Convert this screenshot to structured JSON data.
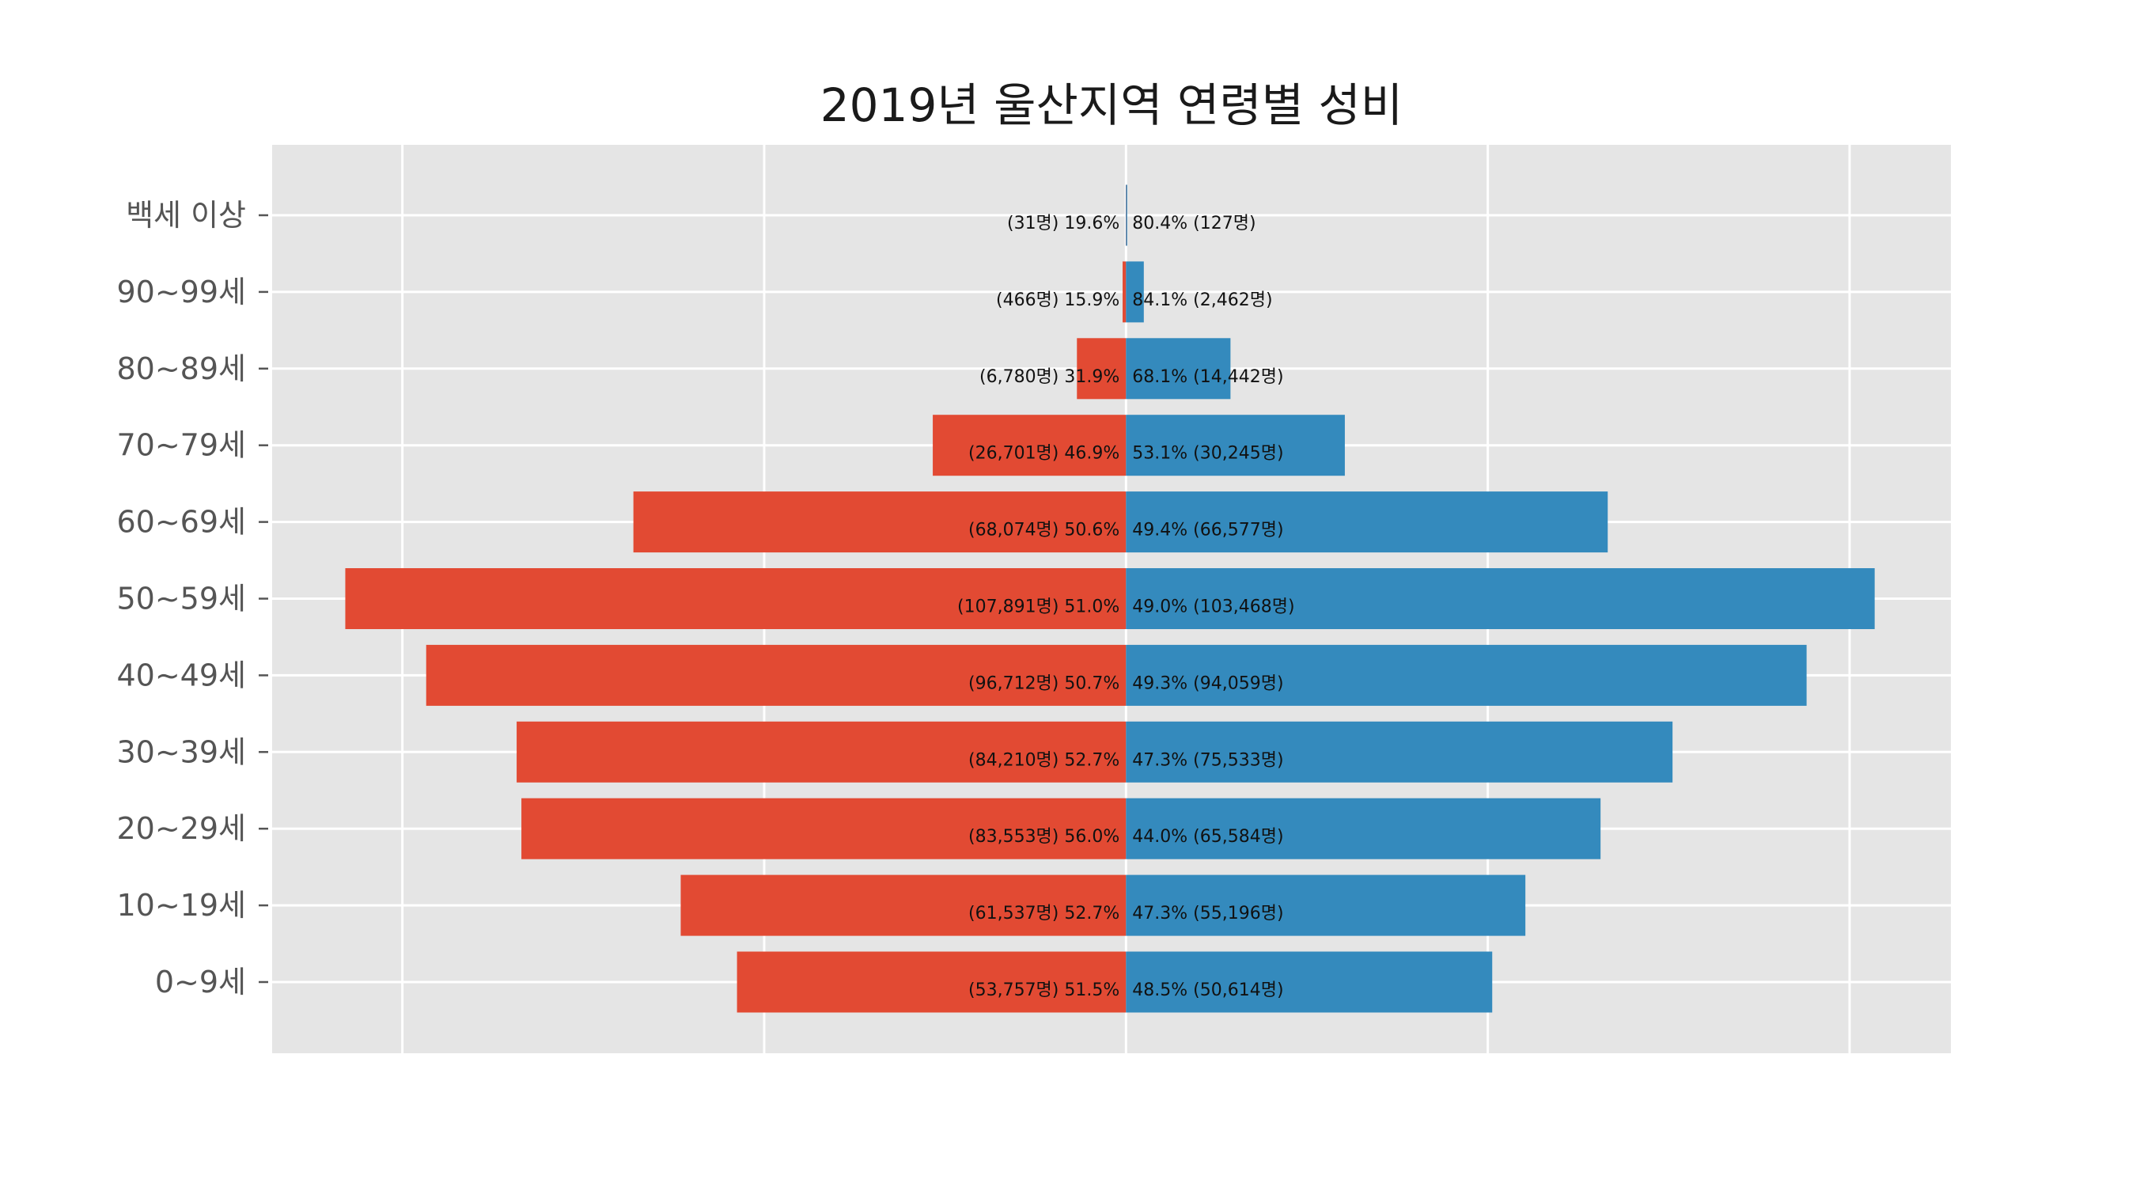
{
  "chart_data": {
    "type": "bar",
    "orientation": "horizontal",
    "title": "2019년 울산지역 연령별 성비",
    "categories": [
      "백세 이상",
      "90~99세",
      "80~89세",
      "70~79세",
      "60~69세",
      "50~59세",
      "40~49세",
      "30~39세",
      "20~29세",
      "10~19세",
      "0~9세"
    ],
    "series": [
      {
        "color": "#E24A33",
        "values": [
          31,
          466,
          6780,
          26701,
          68074,
          107891,
          96712,
          84210,
          83553,
          61537,
          53757
        ],
        "labels": [
          "(31명) 19.6%",
          "(466명) 15.9%",
          "(6,780명) 31.9%",
          "(26,701명) 46.9%",
          "(68,074명) 50.6%",
          "(107,891명) 51.0%",
          "(96,712명) 50.7%",
          "(84,210명) 52.7%",
          "(83,553명) 56.0%",
          "(61,537명) 52.7%",
          "(53,757명) 51.5%"
        ]
      },
      {
        "color": "#348ABD",
        "values": [
          127,
          2462,
          14442,
          30245,
          66577,
          103468,
          94059,
          75533,
          65584,
          55196,
          50614
        ],
        "labels": [
          "80.4% (127명)",
          "84.1% (2,462명)",
          "68.1% (14,442명)",
          "53.1% (30,245명)",
          "49.4% (66,577명)",
          "49.0% (103,468명)",
          "49.3% (94,059명)",
          "47.3% (75,533명)",
          "44.0% (65,584명)",
          "47.3% (55,196명)",
          "48.5% (50,614명)"
        ]
      }
    ],
    "xlim": [
      -118000,
      114000
    ],
    "x_gridlines": [
      -100000,
      -50000,
      0,
      50000,
      100000
    ],
    "xticks_visible": false,
    "grid": true,
    "background": "#E5E5E5"
  }
}
